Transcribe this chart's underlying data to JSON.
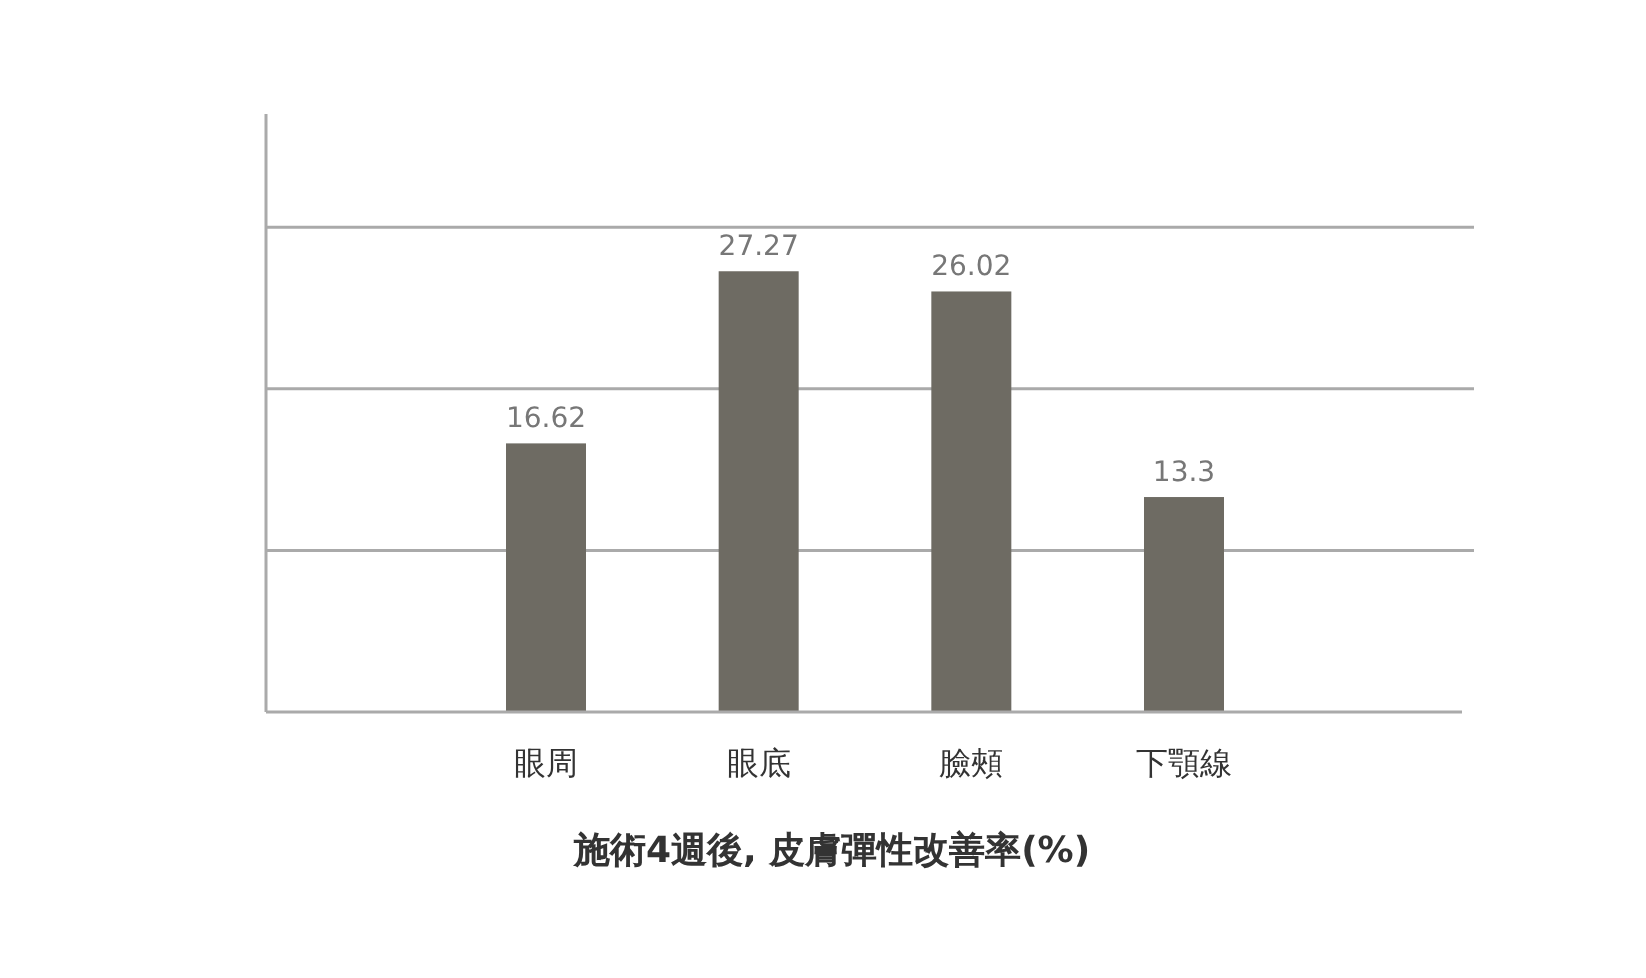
{
  "chart_data": {
    "type": "bar",
    "title": "施術4週後, 皮膚彈性改善率(%)",
    "categories": [
      "眼周",
      "眼底",
      "臉頰",
      "下顎線"
    ],
    "values": [
      16.62,
      27.27,
      26.02,
      13.3
    ],
    "color": "#6e6b63",
    "data_labels": true,
    "relative": false,
    "ylim": [
      0,
      37
    ],
    "yticks": [
      {
        "value": 10,
        "label": null
      },
      {
        "value": 20,
        "label": null
      },
      {
        "value": 30,
        "label": null
      }
    ],
    "grid": "y"
  }
}
